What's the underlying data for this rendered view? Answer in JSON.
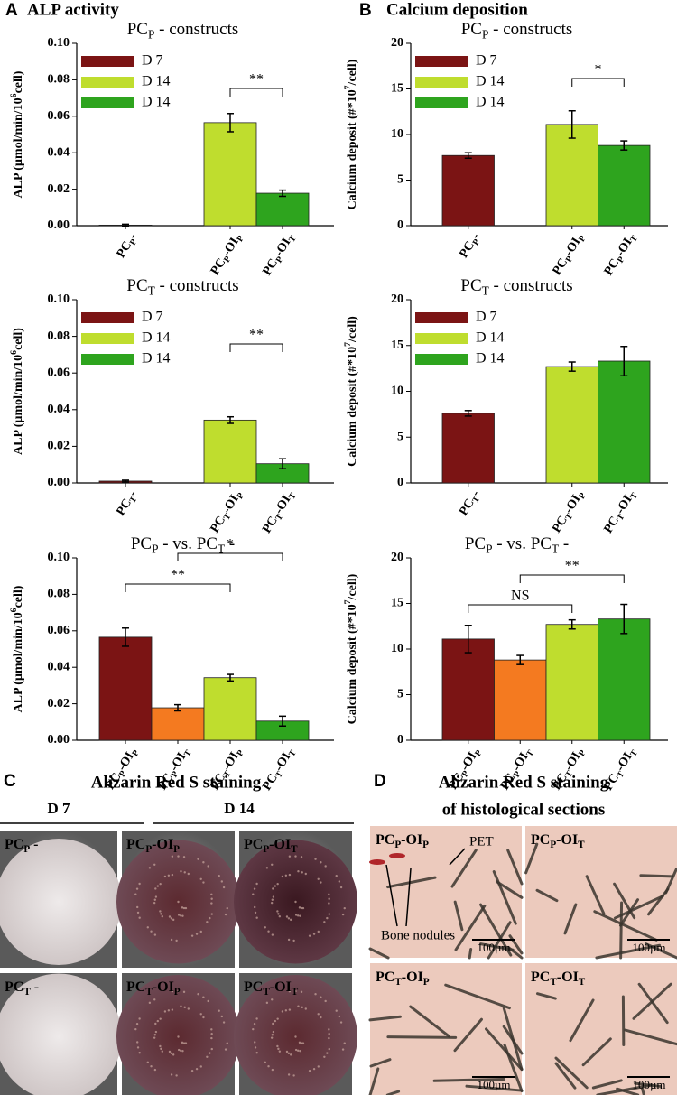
{
  "figure": {
    "panel_a": {
      "letter": "A",
      "title": "ALP activity"
    },
    "panel_b": {
      "letter": "B",
      "title": "Calcium deposition"
    }
  },
  "chart_data": [
    {
      "type": "bar",
      "title": "PCP - constructs",
      "y_label": "ALP (µmol/min/106cell)",
      "categories": [
        "PCP-",
        "PCP-OIP",
        "PCP-OIT"
      ],
      "series": [
        {
          "name": "D 7",
          "color": "#7b1414",
          "values": [
            0.0003,
            null,
            null
          ],
          "errors": [
            0.0005,
            null,
            null
          ]
        },
        {
          "name": "D 14",
          "color": "#bfdd2e",
          "values": [
            null,
            0.0565,
            null
          ],
          "errors": [
            null,
            0.005,
            null
          ]
        },
        {
          "name": "D 14",
          "color": "#2ea41e",
          "values": [
            null,
            null,
            0.0178
          ],
          "errors": [
            null,
            null,
            0.0017
          ]
        }
      ],
      "ylim": [
        0,
        0.1
      ],
      "yticks": [
        {
          "value": 0,
          "label": "0.00"
        },
        0.02,
        0.04,
        0.06,
        0.08,
        {
          "value": 0.1,
          "label": "0.10"
        }
      ],
      "annotations": [
        "**"
      ]
    },
    {
      "type": "bar",
      "title": "PCT - constructs",
      "y_label": "ALP (µmol/min/106cell)",
      "categories": [
        "PCT-",
        "PCT-OIP",
        "PCT-OIT"
      ],
      "series": [
        {
          "name": "D 7",
          "color": "#7b1414",
          "values": [
            0.001,
            null,
            null
          ],
          "errors": [
            0.0005,
            null,
            null
          ]
        },
        {
          "name": "D 14",
          "color": "#bfdd2e",
          "values": [
            null,
            0.0343,
            null
          ],
          "errors": [
            null,
            0.0018,
            null
          ]
        },
        {
          "name": "D 14",
          "color": "#2ea41e",
          "values": [
            null,
            null,
            0.0105
          ],
          "errors": [
            null,
            null,
            0.0027
          ]
        }
      ],
      "ylim": [
        0,
        0.1
      ],
      "yticks": [
        {
          "value": 0,
          "label": "0.00"
        },
        0.02,
        0.04,
        0.06,
        0.08,
        {
          "value": 0.1,
          "label": "0.10"
        }
      ],
      "annotations": [
        "**"
      ]
    },
    {
      "type": "bar",
      "title": "PCP - vs. PCT -",
      "y_label": "ALP (µmol/min/106cell)",
      "categories": [
        "PCP-OIP",
        "PCP-OIT",
        "PCT-OIP",
        "PCT-OIT"
      ],
      "values": [
        0.0565,
        0.0178,
        0.0343,
        0.0105
      ],
      "errors": [
        0.005,
        0.0017,
        0.0018,
        0.0027
      ],
      "colors": [
        "#7b1414",
        "#f47a20",
        "#bfdd2e",
        "#2ea41e"
      ],
      "ylim": [
        0,
        0.1
      ],
      "yticks": [
        {
          "value": 0,
          "label": "0.00"
        },
        0.02,
        0.04,
        0.06,
        0.08,
        {
          "value": 0.1,
          "label": "0.10"
        }
      ],
      "annotations": [
        "**",
        "*"
      ]
    },
    {
      "type": "bar",
      "title": "PCP - constructs",
      "y_label": "Calcium deposit (#*107/cell)",
      "categories": [
        "PCP-",
        "PCP-OIP",
        "PCP-OIT"
      ],
      "series": [
        {
          "name": "D 7",
          "color": "#7b1414",
          "values": [
            7.7,
            null,
            null
          ],
          "errors": [
            0.3,
            null,
            null
          ]
        },
        {
          "name": "D 14",
          "color": "#bfdd2e",
          "values": [
            null,
            11.1,
            null
          ],
          "errors": [
            null,
            1.5,
            null
          ]
        },
        {
          "name": "D 14",
          "color": "#2ea41e",
          "values": [
            null,
            null,
            8.8
          ],
          "errors": [
            null,
            null,
            0.5
          ]
        }
      ],
      "ylim": [
        0,
        20
      ],
      "yticks": [
        0,
        5,
        10,
        15,
        20
      ],
      "annotations": [
        "*"
      ]
    },
    {
      "type": "bar",
      "title": "PCT - constructs",
      "y_label": "Calcium deposit (#*107/cell)",
      "categories": [
        "PCT-",
        "PCT-OIP",
        "PCT-OIT"
      ],
      "series": [
        {
          "name": "D 7",
          "color": "#7b1414",
          "values": [
            7.6,
            null,
            null
          ],
          "errors": [
            0.3,
            null,
            null
          ]
        },
        {
          "name": "D 14",
          "color": "#bfdd2e",
          "values": [
            null,
            12.7,
            null
          ],
          "errors": [
            null,
            0.5,
            null
          ]
        },
        {
          "name": "D 14",
          "color": "#2ea41e",
          "values": [
            null,
            null,
            13.3
          ],
          "errors": [
            null,
            null,
            1.6
          ]
        }
      ],
      "ylim": [
        0,
        20
      ],
      "yticks": [
        0,
        5,
        10,
        15,
        20
      ],
      "annotations": []
    },
    {
      "type": "bar",
      "title": "PCP - vs. PCT -",
      "y_label": "Calcium deposit (#*107/cell)",
      "categories": [
        "PCP-OIP",
        "PCP-OIT",
        "PCT-OIP",
        "PCT-OIT"
      ],
      "values": [
        11.1,
        8.8,
        12.7,
        13.3
      ],
      "errors": [
        1.5,
        0.5,
        0.5,
        1.6
      ],
      "colors": [
        "#7b1414",
        "#f47a20",
        "#bfdd2e",
        "#2ea41e"
      ],
      "ylim": [
        0,
        20
      ],
      "yticks": [
        0,
        5,
        10,
        15,
        20
      ],
      "annotations": [
        "NS",
        "**"
      ]
    }
  ],
  "staining": {
    "letter": "C",
    "title": "Alizarin Red S staining",
    "columns": [
      "D 7",
      "D 14"
    ],
    "wells": [
      "PCP -",
      "PCP-OIP",
      "PCP-OIT",
      "PCT -",
      "PCT-OIP",
      "PCT-OIT"
    ]
  },
  "histology": {
    "letter": "D",
    "title_lines": [
      "Alizarin Red S staining",
      "of histological sections"
    ],
    "images": [
      {
        "label": "PCP-OIP",
        "scale": "100µm"
      },
      {
        "label": "PCP-OIT",
        "scale": "100µm"
      },
      {
        "label": "PCT-OIP",
        "scale": "100µm"
      },
      {
        "label": "PCT-OIT",
        "scale": "100µm"
      }
    ],
    "callouts": [
      "PET",
      "Bone nodules"
    ]
  }
}
